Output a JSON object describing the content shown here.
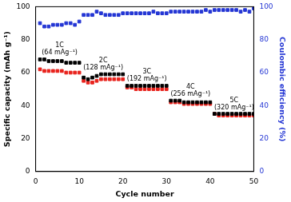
{
  "chart_data": {
    "type": "scatter",
    "x_label": "Cycle number",
    "y_label": "Specific capacity (mAh g⁻¹)",
    "y2_label": "Coulombic efficiency (%)",
    "x": [
      1,
      2,
      3,
      4,
      5,
      6,
      7,
      8,
      9,
      10,
      11,
      12,
      13,
      14,
      15,
      16,
      17,
      18,
      19,
      20,
      21,
      22,
      23,
      24,
      25,
      26,
      27,
      28,
      29,
      30,
      31,
      32,
      33,
      34,
      35,
      36,
      37,
      38,
      39,
      40,
      41,
      42,
      43,
      44,
      45,
      46,
      47,
      48,
      49,
      50
    ],
    "series": [
      {
        "color": "#000000",
        "marker": "square",
        "values": [
          68,
          68,
          67,
          67,
          67,
          67,
          66,
          66,
          66,
          66,
          57,
          56,
          57,
          58,
          59,
          59,
          59,
          59,
          59,
          59,
          52,
          52,
          52,
          52,
          52,
          52,
          52,
          52,
          52,
          52,
          43,
          43,
          43,
          42,
          42,
          42,
          42,
          42,
          42,
          42,
          35,
          35,
          35,
          35,
          35,
          35,
          35,
          35,
          35,
          35
        ]
      },
      {
        "color": "#e8231d",
        "marker": "square",
        "values": [
          62,
          61,
          61,
          61,
          61,
          61,
          60,
          60,
          60,
          60,
          55,
          54,
          54,
          55,
          56,
          56,
          56,
          56,
          56,
          56,
          51,
          51,
          50,
          50,
          50,
          50,
          50,
          50,
          50,
          50,
          42,
          42,
          42,
          41,
          41,
          41,
          41,
          41,
          41,
          41,
          35,
          34,
          34,
          34,
          34,
          34,
          34,
          34,
          34,
          34
        ]
      },
      {
        "color": "#2436d4",
        "marker": "square",
        "axis": "y2",
        "values": [
          90,
          88,
          88,
          89,
          89,
          89,
          90,
          90,
          89,
          91,
          95,
          95,
          95,
          97,
          96,
          95,
          95,
          95,
          95,
          96,
          96,
          96,
          96,
          96,
          96,
          96,
          97,
          96,
          96,
          96,
          97,
          97,
          97,
          97,
          97,
          97,
          97,
          97,
          98,
          97,
          98,
          98,
          98,
          98,
          98,
          98,
          97,
          98,
          97,
          99
        ]
      }
    ],
    "xlim": [
      0,
      50
    ],
    "xticks": [
      0,
      10,
      20,
      30,
      40,
      50
    ],
    "ylim": [
      0,
      100
    ],
    "yticks": [
      0,
      20,
      40,
      60,
      80,
      100
    ],
    "y2lim": [
      0,
      100
    ],
    "y2ticks": [
      0,
      20,
      40,
      60,
      80,
      100
    ],
    "grid": false,
    "annotations": [
      [
        "1C",
        "(64 mAg⁻¹)"
      ],
      [
        "2C",
        "(128 mAg⁻¹)"
      ],
      [
        "3C",
        "(192 mAg⁻¹)"
      ],
      [
        "4C",
        "(256 mAg⁻¹)"
      ],
      [
        "5C",
        "(320 mAg⁻¹)"
      ]
    ]
  }
}
